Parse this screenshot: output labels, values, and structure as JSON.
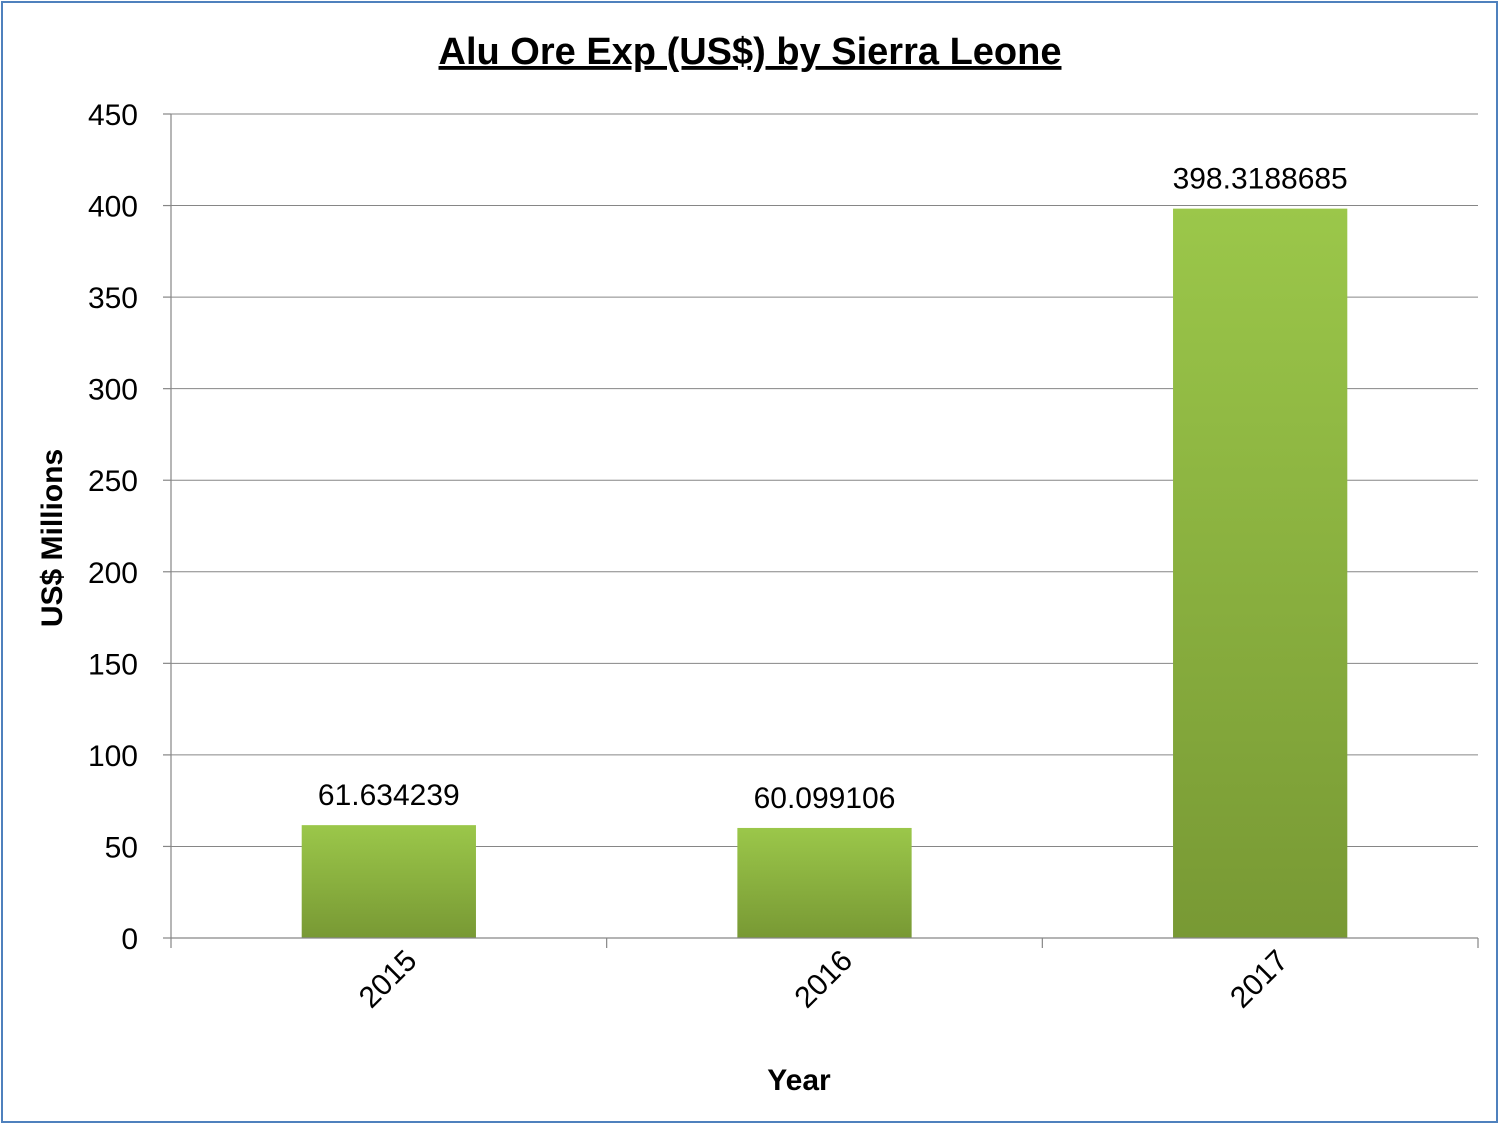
{
  "chart_data": {
    "type": "bar",
    "title": "Alu Ore Exp (US$) by Sierra Leone",
    "xlabel": "Year",
    "ylabel": "US$ Millions",
    "categories": [
      "2015",
      "2016",
      "2017"
    ],
    "values": [
      61.634239,
      60.099106,
      398.3188685
    ],
    "data_labels": [
      "61.634239",
      "60.099106",
      "398.3188685"
    ],
    "ylim": [
      0,
      450
    ],
    "yticks": [
      0,
      50,
      100,
      150,
      200,
      250,
      300,
      350,
      400,
      450
    ],
    "grid": true,
    "legend": "none",
    "bar_color_top": "#9bc74a",
    "bar_color_bottom": "#789934",
    "frame_color": "#4f81bd"
  }
}
